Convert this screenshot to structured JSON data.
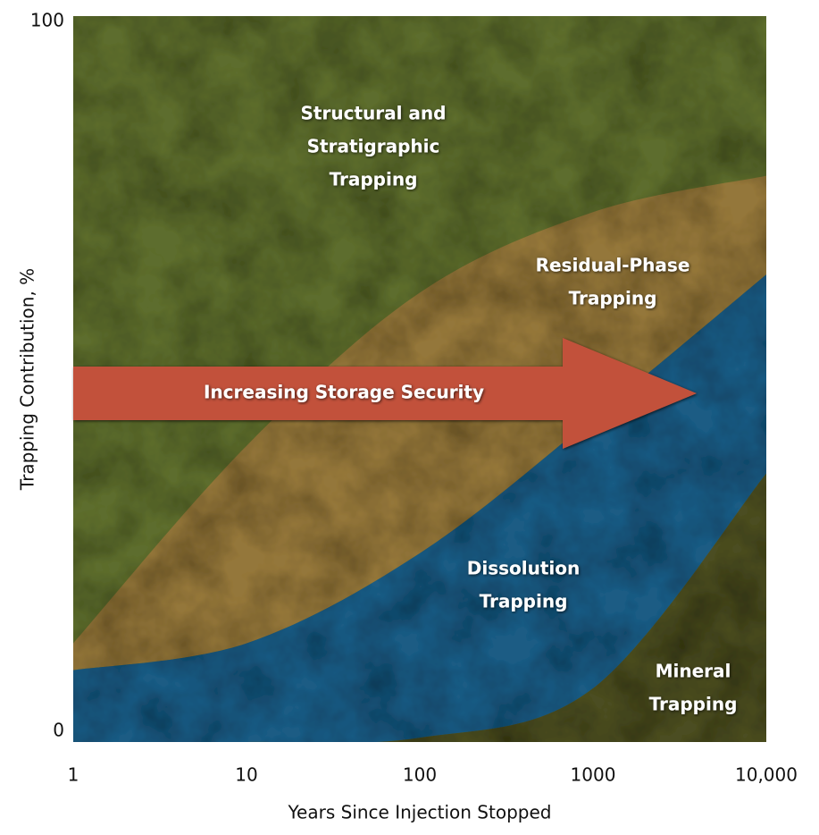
{
  "chart_data": {
    "type": "band",
    "x_label": "Years Since Injection Stopped",
    "y_label": "Trapping Contribution, %",
    "x_scale": "log",
    "xlim": [
      1,
      10000
    ],
    "xticks": [
      1,
      10,
      100,
      1000,
      {
        "value": 10000,
        "label": "10,000"
      }
    ],
    "ylim": [
      0,
      100
    ],
    "yticks": [
      0,
      100
    ],
    "background": {
      "name": [
        "Structural and",
        "Stratigraphic",
        "Trapping"
      ],
      "color": "#5d6d2f"
    },
    "x": [
      1,
      10,
      100,
      1000,
      10000
    ],
    "bands": [
      {
        "name": [
          "Residual-Phase",
          "Trapping"
        ],
        "color": "#94773a",
        "upper": [
          13.6,
          40.8,
          61.9,
          73,
          78
        ],
        "lower": [
          9.9,
          13.6,
          26,
          44.6,
          64.4
        ]
      },
      {
        "name": [
          "Dissolution",
          "Trapping"
        ],
        "color": "#1e5b84",
        "upper": [
          9.9,
          13.6,
          26,
          44.6,
          64.4
        ],
        "lower": [
          0,
          0,
          0.6,
          7.4,
          37
        ]
      }
    ],
    "floor": {
      "name": [
        "Mineral",
        "Trapping"
      ],
      "color": "#4b4e24"
    },
    "arrow": {
      "label": "Increasing Storage Security",
      "color": "#c2513a"
    }
  }
}
